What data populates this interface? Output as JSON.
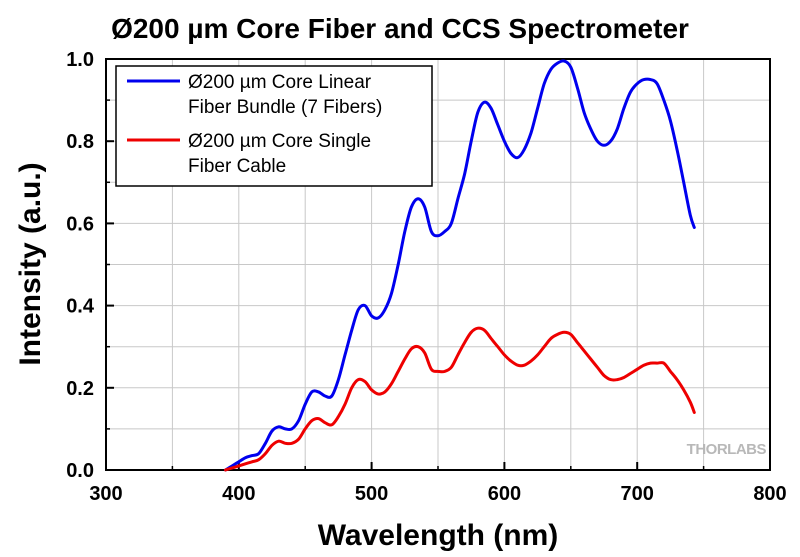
{
  "chart_data": {
    "type": "line",
    "title": "Ø200 µm Core Fiber and CCS Spectrometer",
    "xlabel": "Wavelength (nm)",
    "ylabel": "Intensity (a.u.)",
    "xlim": [
      300,
      800
    ],
    "ylim": [
      0,
      1.0
    ],
    "xticks": [
      300,
      400,
      500,
      600,
      700,
      800
    ],
    "yticks": [
      0.0,
      0.2,
      0.4,
      0.6,
      0.8,
      1.0
    ],
    "xtick_labels": [
      "300",
      "400",
      "500",
      "600",
      "700",
      "800"
    ],
    "ytick_labels": [
      "0.0",
      "0.2",
      "0.4",
      "0.6",
      "0.8",
      "1.0"
    ],
    "grid": true,
    "legend_position": "top-left",
    "series": [
      {
        "name": "Ø200 µm Core Linear Fiber Bundle (7 Fibers)",
        "legend_lines": [
          "Ø200 µm Core Linear",
          "Fiber Bundle (7 Fibers)"
        ],
        "color": "#0000ee",
        "x": [
          390,
          395,
          400,
          405,
          410,
          415,
          420,
          425,
          430,
          435,
          440,
          445,
          450,
          455,
          460,
          465,
          470,
          475,
          480,
          485,
          490,
          495,
          500,
          505,
          510,
          515,
          520,
          525,
          530,
          535,
          540,
          545,
          550,
          555,
          560,
          565,
          570,
          575,
          580,
          585,
          590,
          595,
          600,
          605,
          610,
          615,
          620,
          625,
          630,
          635,
          640,
          645,
          650,
          655,
          660,
          665,
          670,
          675,
          680,
          685,
          690,
          695,
          700,
          705,
          710,
          715,
          720,
          725,
          730,
          735,
          740,
          743
        ],
        "y": [
          0.0,
          0.01,
          0.02,
          0.03,
          0.035,
          0.04,
          0.065,
          0.095,
          0.105,
          0.1,
          0.1,
          0.12,
          0.16,
          0.19,
          0.19,
          0.18,
          0.18,
          0.22,
          0.28,
          0.34,
          0.39,
          0.4,
          0.375,
          0.37,
          0.39,
          0.43,
          0.5,
          0.58,
          0.64,
          0.66,
          0.64,
          0.58,
          0.57,
          0.58,
          0.6,
          0.66,
          0.72,
          0.8,
          0.87,
          0.895,
          0.88,
          0.84,
          0.8,
          0.77,
          0.76,
          0.78,
          0.82,
          0.88,
          0.94,
          0.975,
          0.99,
          0.995,
          0.98,
          0.93,
          0.87,
          0.83,
          0.8,
          0.79,
          0.8,
          0.83,
          0.88,
          0.92,
          0.94,
          0.95,
          0.95,
          0.94,
          0.9,
          0.85,
          0.78,
          0.7,
          0.62,
          0.59
        ]
      },
      {
        "name": "Ø200 µm Core Single Fiber Cable",
        "legend_lines": [
          "Ø200 µm Core Single",
          "Fiber Cable"
        ],
        "color": "#ee0000",
        "x": [
          390,
          395,
          400,
          405,
          410,
          415,
          420,
          425,
          430,
          435,
          440,
          445,
          450,
          455,
          460,
          465,
          470,
          475,
          480,
          485,
          490,
          495,
          500,
          505,
          510,
          515,
          520,
          525,
          530,
          535,
          540,
          545,
          550,
          555,
          560,
          565,
          570,
          575,
          580,
          585,
          590,
          595,
          600,
          605,
          610,
          615,
          620,
          625,
          630,
          635,
          640,
          645,
          650,
          655,
          660,
          665,
          670,
          675,
          680,
          685,
          690,
          695,
          700,
          705,
          710,
          715,
          720,
          725,
          730,
          735,
          740,
          743
        ],
        "y": [
          0.0,
          0.005,
          0.01,
          0.015,
          0.02,
          0.025,
          0.04,
          0.06,
          0.07,
          0.065,
          0.065,
          0.075,
          0.1,
          0.12,
          0.125,
          0.115,
          0.11,
          0.13,
          0.16,
          0.2,
          0.22,
          0.215,
          0.195,
          0.185,
          0.19,
          0.21,
          0.24,
          0.27,
          0.295,
          0.3,
          0.285,
          0.245,
          0.24,
          0.24,
          0.25,
          0.28,
          0.31,
          0.335,
          0.345,
          0.34,
          0.32,
          0.3,
          0.28,
          0.265,
          0.255,
          0.255,
          0.265,
          0.28,
          0.3,
          0.32,
          0.33,
          0.335,
          0.33,
          0.31,
          0.29,
          0.27,
          0.25,
          0.23,
          0.22,
          0.22,
          0.225,
          0.235,
          0.245,
          0.255,
          0.26,
          0.26,
          0.26,
          0.24,
          0.22,
          0.195,
          0.165,
          0.14
        ]
      }
    ],
    "watermark": "THORLABS"
  }
}
